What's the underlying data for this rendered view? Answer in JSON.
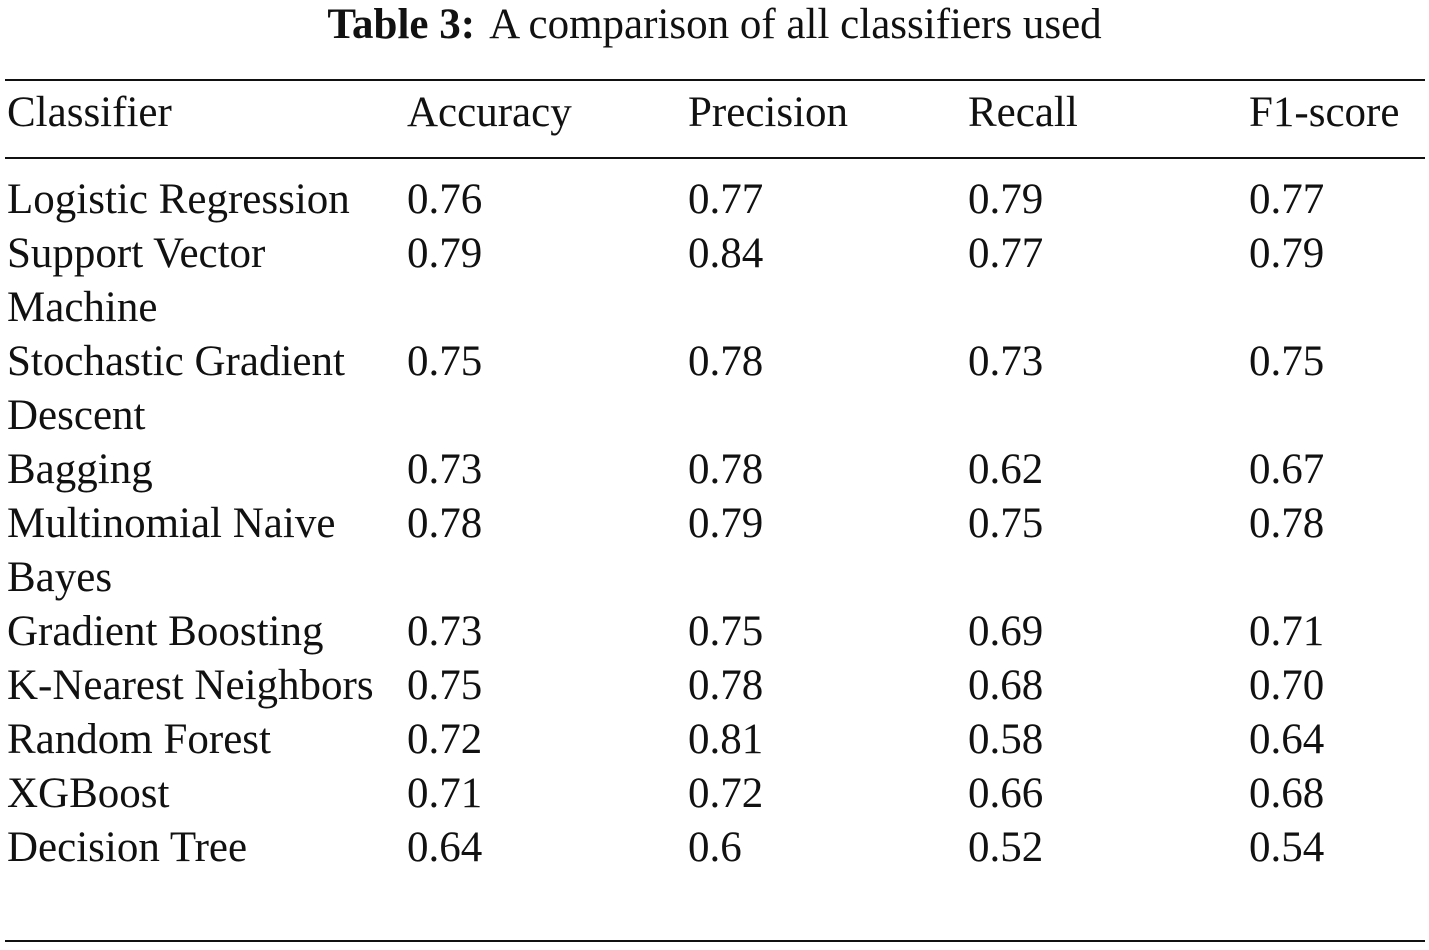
{
  "caption": {
    "label": "Table 3:",
    "text": "A comparison of all classifiers used"
  },
  "table": {
    "headers": [
      "Classifier",
      "Accuracy",
      "Precision",
      "Recall",
      "F1-score"
    ],
    "rows": [
      {
        "classifier": "Logistic Regression",
        "accuracy": "0.76",
        "precision": "0.77",
        "recall": "0.79",
        "f1": "0.77"
      },
      {
        "classifier": "Support Vector Machine",
        "accuracy": "0.79",
        "precision": "0.84",
        "recall": "0.77",
        "f1": "0.79"
      },
      {
        "classifier": "Stochastic Gradient Descent",
        "accuracy": "0.75",
        "precision": "0.78",
        "recall": "0.73",
        "f1": "0.75"
      },
      {
        "classifier": "Bagging",
        "accuracy": "0.73",
        "precision": "0.78",
        "recall": "0.62",
        "f1": "0.67"
      },
      {
        "classifier": "Multinomial Naive Bayes",
        "accuracy": "0.78",
        "precision": "0.79",
        "recall": "0.75",
        "f1": "0.78"
      },
      {
        "classifier": "Gradient Boosting",
        "accuracy": "0.73",
        "precision": "0.75",
        "recall": "0.69",
        "f1": "0.71"
      },
      {
        "classifier": "K-Nearest Neighbors",
        "accuracy": "0.75",
        "precision": "0.78",
        "recall": "0.68",
        "f1": "0.70"
      },
      {
        "classifier": "Random Forest",
        "accuracy": "0.72",
        "precision": "0.81",
        "recall": "0.58",
        "f1": "0.64"
      },
      {
        "classifier": "XGBoost",
        "accuracy": "0.71",
        "precision": "0.72",
        "recall": "0.66",
        "f1": "0.68"
      },
      {
        "classifier": "Decision Tree",
        "accuracy": "0.64",
        "precision": "0.6",
        "recall": "0.52",
        "f1": "0.54"
      }
    ]
  }
}
